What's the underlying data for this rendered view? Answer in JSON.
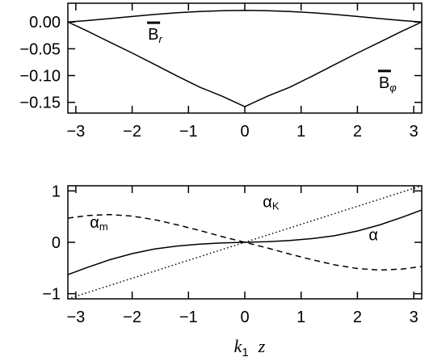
{
  "chart_data": [
    {
      "type": "line",
      "xlim": [
        -3.14159,
        3.14159
      ],
      "ylim": [
        -0.17,
        0.035
      ],
      "xticks": [
        "−3",
        "−2",
        "−1",
        "0",
        "1",
        "2",
        "3"
      ],
      "yticks": [
        "0.00",
        "−0.05",
        "−0.10",
        "−0.15"
      ],
      "xtick_values": [
        -3,
        -2,
        -1,
        0,
        1,
        2,
        3
      ],
      "ytick_values": [
        0,
        -0.05,
        -0.1,
        -0.15
      ],
      "series": [
        {
          "name": "B_r",
          "style": "solid",
          "x": [
            -3.1416,
            -2.8,
            -2.4,
            -2.0,
            -1.6,
            -1.2,
            -0.8,
            -0.4,
            0,
            0.4,
            0.8,
            1.2,
            1.6,
            2.0,
            2.4,
            2.8,
            3.1416
          ],
          "y": [
            0.0,
            0.0026,
            0.0064,
            0.0104,
            0.0141,
            0.0172,
            0.0196,
            0.0211,
            0.0216,
            0.0211,
            0.0196,
            0.0172,
            0.0141,
            0.0104,
            0.0064,
            0.0026,
            0.0
          ]
        },
        {
          "name": "B_phi",
          "style": "solid",
          "x": [
            -3.1416,
            -2.8,
            -2.4,
            -2.0,
            -1.6,
            -1.2,
            -0.8,
            -0.4,
            0,
            0.4,
            0.8,
            1.2,
            1.6,
            2.0,
            2.4,
            2.8,
            3.1416
          ],
          "y": [
            0.0,
            -0.0168,
            -0.0375,
            -0.0579,
            -0.0793,
            -0.1009,
            -0.1216,
            -0.1386,
            -0.158,
            -0.1386,
            -0.1216,
            -0.1009,
            -0.0793,
            -0.0579,
            -0.0375,
            -0.0168,
            0.0
          ]
        }
      ],
      "annotations": [
        {
          "base": "B",
          "sub": "r",
          "x": -1.72,
          "y": -0.033
        },
        {
          "base": "B",
          "sub": "φ",
          "x": 2.38,
          "y": -0.123
        }
      ]
    },
    {
      "type": "line",
      "xlim": [
        -3.14159,
        3.14159
      ],
      "ylim": [
        -1.1,
        1.1
      ],
      "xticks": [
        "−3",
        "−2",
        "−1",
        "0",
        "1",
        "2",
        "3"
      ],
      "yticks": [
        "1",
        "0",
        "−1"
      ],
      "xtick_values": [
        -3,
        -2,
        -1,
        0,
        1,
        2,
        3
      ],
      "ytick_values": [
        1,
        0,
        -1
      ],
      "xlabel_base": "k",
      "xlabel_sub": "1",
      "xlabel_var": "z",
      "series": [
        {
          "name": "α",
          "style": "solid",
          "x": [
            -3.1416,
            -2.8,
            -2.4,
            -2.0,
            -1.6,
            -1.2,
            -0.8,
            -0.4,
            0,
            0.4,
            0.8,
            1.2,
            1.6,
            2.0,
            2.4,
            2.8,
            3.1416
          ],
          "y": [
            -0.63,
            -0.49,
            -0.34,
            -0.22,
            -0.13,
            -0.072,
            -0.036,
            -0.012,
            0.0,
            0.012,
            0.036,
            0.072,
            0.13,
            0.22,
            0.34,
            0.49,
            0.63
          ]
        },
        {
          "name": "α_m",
          "style": "dashed",
          "x": [
            -3.1416,
            -2.8,
            -2.4,
            -2.0,
            -1.6,
            -1.2,
            -0.8,
            -0.4,
            0,
            0.4,
            0.8,
            1.2,
            1.6,
            2.0,
            2.4,
            2.8,
            3.1416
          ],
          "y": [
            0.47,
            0.52,
            0.54,
            0.51,
            0.44,
            0.34,
            0.23,
            0.11,
            0.0,
            -0.11,
            -0.23,
            -0.34,
            -0.44,
            -0.51,
            -0.54,
            -0.52,
            -0.47
          ]
        },
        {
          "name": "α_K",
          "style": "dotted",
          "x": [
            -3.1416,
            3.1416
          ],
          "y": [
            -1.1,
            1.1
          ]
        }
      ],
      "annotations": [
        {
          "base": "α",
          "sub": "m",
          "x": -2.75,
          "y": 0.28
        },
        {
          "base": "α",
          "sub": "K",
          "x": 0.32,
          "y": 0.68
        },
        {
          "base": "α",
          "sub": "",
          "x": 2.2,
          "y": 0.04
        }
      ]
    }
  ]
}
